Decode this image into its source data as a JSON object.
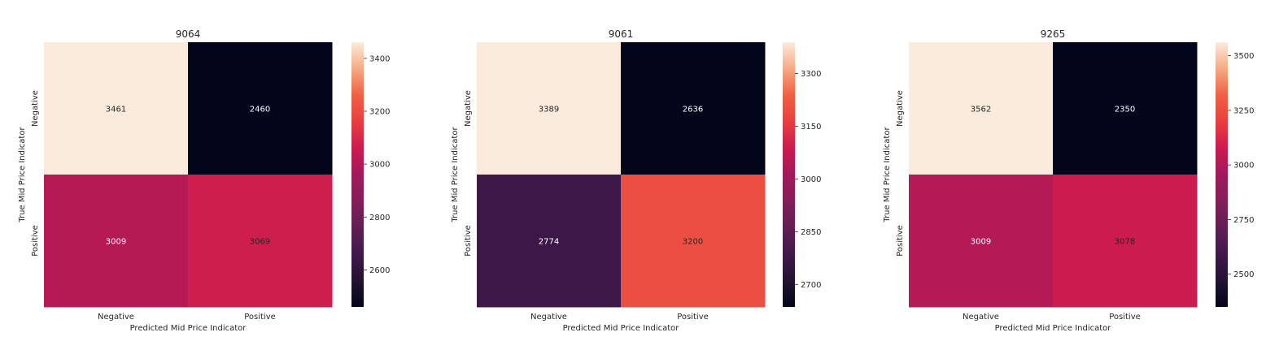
{
  "chart_data": [
    {
      "type": "heatmap",
      "title": "9064",
      "xlabel": "Predicted Mid Price Indicator",
      "ylabel": "True Mid Price Indicator",
      "x_categories": [
        "Negative",
        "Positive"
      ],
      "y_categories": [
        "Negative",
        "Positive"
      ],
      "values": [
        [
          3461,
          2460
        ],
        [
          3009,
          3069
        ]
      ],
      "colorbar": {
        "ticks": [
          2600,
          2800,
          3000,
          3200,
          3400
        ],
        "range": [
          2460,
          3461
        ]
      }
    },
    {
      "type": "heatmap",
      "title": "9061",
      "xlabel": "Predicted Mid Price Indicator",
      "ylabel": "True Mid Price Indicator",
      "x_categories": [
        "Negative",
        "Positive"
      ],
      "y_categories": [
        "Negative",
        "Positive"
      ],
      "values": [
        [
          3389,
          2636
        ],
        [
          2774,
          3200
        ]
      ],
      "colorbar": {
        "ticks": [
          2700,
          2850,
          3000,
          3150,
          3300
        ],
        "range": [
          2636,
          3389
        ]
      }
    },
    {
      "type": "heatmap",
      "title": "9265",
      "xlabel": "Predicted Mid Price Indicator",
      "ylabel": "True Mid Price Indicator",
      "x_categories": [
        "Negative",
        "Positive"
      ],
      "y_categories": [
        "Negative",
        "Positive"
      ],
      "values": [
        [
          3562,
          2350
        ],
        [
          3009,
          3078
        ]
      ],
      "colorbar": {
        "ticks": [
          2500,
          2750,
          3000,
          3250,
          3500
        ],
        "range": [
          2350,
          3562
        ]
      }
    }
  ]
}
